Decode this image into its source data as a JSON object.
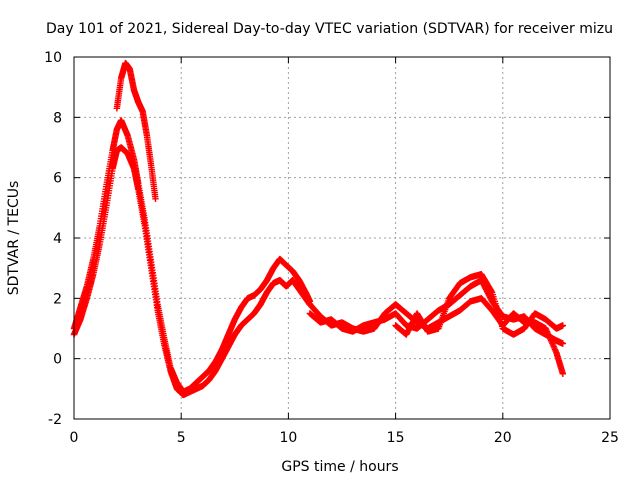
{
  "chart_data": {
    "type": "scatter",
    "title": "Day 101 of 2021, Sidereal Day-to-day VTEC variation (SDTVAR) for receiver mizu",
    "xlabel": "GPS time / hours",
    "ylabel": "SDTVAR / TECUs",
    "xlim": [
      0,
      25
    ],
    "ylim": [
      -2,
      10
    ],
    "xticks": [
      0,
      5,
      10,
      15,
      20,
      25
    ],
    "yticks": [
      -2,
      0,
      2,
      4,
      6,
      8,
      10
    ],
    "grid": true,
    "marker": "+",
    "colors": {
      "series": "#ff0000",
      "grid": "#a0a0a0",
      "axis": "#000000"
    },
    "series": [
      {
        "name": "SDTVAR",
        "tracks": [
          {
            "x": [
              0.0,
              0.3,
              0.6,
              0.9,
              1.2,
              1.5,
              1.8,
              2.0,
              2.2,
              2.5,
              2.8,
              3.0,
              3.3,
              3.6,
              3.9,
              4.2,
              4.5,
              4.8,
              5.1,
              5.4,
              5.7,
              6.0,
              6.3,
              6.6,
              6.9,
              7.2,
              7.5,
              7.8,
              8.1,
              8.4,
              8.7,
              9.0,
              9.3,
              9.6,
              9.9,
              10.2,
              10.5,
              10.8,
              11.0
            ],
            "y": [
              0.8,
              1.3,
              2.0,
              2.8,
              3.8,
              5.0,
              6.3,
              6.9,
              7.0,
              6.8,
              6.3,
              5.6,
              4.4,
              3.0,
              1.6,
              0.5,
              -0.4,
              -1.0,
              -1.2,
              -1.1,
              -1.0,
              -0.9,
              -0.7,
              -0.4,
              0.0,
              0.4,
              0.8,
              1.1,
              1.3,
              1.5,
              1.8,
              2.2,
              2.5,
              2.6,
              2.4,
              2.6,
              2.3,
              2.0,
              1.8
            ]
          },
          {
            "x": [
              0.0,
              0.3,
              0.6,
              0.9,
              1.2,
              1.5,
              1.8,
              2.0,
              2.2,
              2.5,
              2.8,
              3.0,
              3.3,
              3.6,
              3.9,
              4.2,
              4.5,
              4.8,
              5.1,
              5.4,
              5.7,
              6.0,
              6.3,
              6.6,
              6.9,
              7.2,
              7.5,
              7.8,
              8.1,
              8.4,
              8.7,
              9.0,
              9.3,
              9.6,
              9.9,
              10.2,
              10.5,
              10.8,
              11.0
            ],
            "y": [
              1.0,
              1.7,
              2.4,
              3.3,
              4.4,
              5.7,
              6.9,
              7.6,
              7.9,
              7.4,
              6.6,
              5.8,
              4.6,
              3.2,
              1.8,
              0.7,
              -0.3,
              -0.8,
              -1.1,
              -1.0,
              -0.8,
              -0.6,
              -0.4,
              -0.1,
              0.3,
              0.8,
              1.3,
              1.7,
              2.0,
              2.1,
              2.3,
              2.6,
              3.0,
              3.3,
              3.1,
              2.9,
              2.6,
              2.2,
              1.9
            ]
          },
          {
            "x": [
              2.0,
              2.2,
              2.4,
              2.6,
              2.8,
              3.0,
              3.2,
              3.4,
              3.6,
              3.8
            ],
            "y": [
              8.3,
              9.3,
              9.8,
              9.6,
              8.9,
              8.5,
              8.2,
              7.4,
              6.4,
              5.3
            ]
          },
          {
            "x": [
              11.0,
              11.5,
              12.0,
              12.5,
              13.0,
              13.5,
              14.0,
              14.5,
              15.0,
              15.5,
              16.0,
              16.5,
              17.0,
              17.5,
              18.0,
              18.5,
              19.0,
              19.5,
              20.0,
              20.5,
              21.0,
              21.5,
              22.0,
              22.5,
              22.8
            ],
            "y": [
              1.5,
              1.2,
              1.3,
              1.0,
              0.9,
              1.1,
              1.2,
              1.3,
              1.5,
              1.1,
              1.0,
              1.3,
              1.6,
              1.8,
              2.1,
              2.4,
              2.6,
              1.9,
              1.4,
              1.3,
              1.4,
              1.0,
              0.8,
              0.6,
              0.5
            ]
          },
          {
            "x": [
              11.0,
              11.5,
              12.0,
              12.5,
              13.0,
              13.5,
              14.0,
              14.5,
              15.0,
              15.5,
              16.0,
              16.5,
              17.0,
              17.5,
              18.0,
              18.5,
              19.0,
              19.5,
              20.0,
              20.5,
              21.0,
              21.5,
              22.0,
              22.5,
              22.8
            ],
            "y": [
              1.8,
              1.4,
              1.1,
              1.2,
              1.0,
              0.9,
              1.0,
              1.5,
              1.8,
              1.5,
              1.2,
              1.0,
              1.2,
              1.4,
              1.6,
              1.9,
              2.0,
              1.6,
              1.1,
              1.5,
              1.2,
              1.2,
              1.0,
              0.2,
              -0.5
            ]
          },
          {
            "x": [
              15.0,
              15.5,
              16.0,
              16.5,
              17.0,
              17.5,
              18.0,
              18.5,
              19.0,
              19.5,
              20.0,
              20.5,
              21.0,
              21.5,
              22.0,
              22.5,
              22.8
            ],
            "y": [
              1.1,
              0.8,
              1.5,
              0.9,
              1.0,
              2.0,
              2.5,
              2.7,
              2.8,
              2.2,
              1.0,
              0.8,
              1.0,
              1.5,
              1.3,
              1.0,
              1.1
            ]
          }
        ]
      }
    ]
  }
}
